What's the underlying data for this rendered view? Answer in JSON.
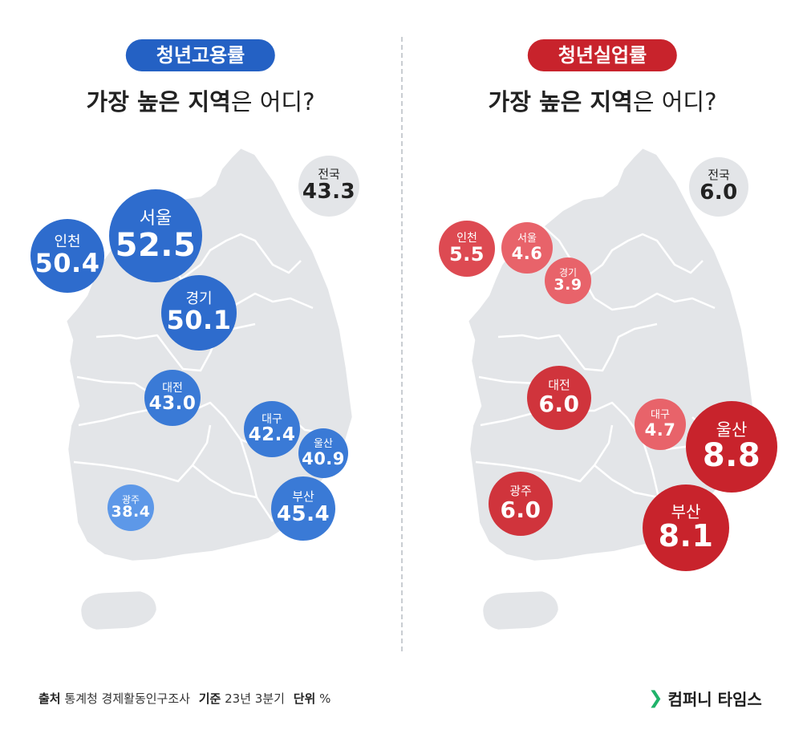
{
  "left": {
    "pill": "청년고용률",
    "pill_color": "#2461c4",
    "subtitle_strong": "가장 높은 지역",
    "subtitle_rest": "은 어디?",
    "national": {
      "name": "전국",
      "value": "43.3"
    },
    "regions": [
      {
        "name": "서울",
        "value": "52.5"
      },
      {
        "name": "인천",
        "value": "50.4"
      },
      {
        "name": "경기",
        "value": "50.1"
      },
      {
        "name": "대전",
        "value": "43.0"
      },
      {
        "name": "대구",
        "value": "42.4"
      },
      {
        "name": "울산",
        "value": "40.9"
      },
      {
        "name": "부산",
        "value": "45.4"
      },
      {
        "name": "광주",
        "value": "38.4"
      }
    ]
  },
  "right": {
    "pill": "청년실업률",
    "pill_color": "#c8232c",
    "subtitle_strong": "가장 높은 지역",
    "subtitle_rest": "은 어디?",
    "national": {
      "name": "전국",
      "value": "6.0"
    },
    "regions": [
      {
        "name": "인천",
        "value": "5.5"
      },
      {
        "name": "서울",
        "value": "4.6"
      },
      {
        "name": "경기",
        "value": "3.9"
      },
      {
        "name": "대전",
        "value": "6.0"
      },
      {
        "name": "대구",
        "value": "4.7"
      },
      {
        "name": "울산",
        "value": "8.8"
      },
      {
        "name": "부산",
        "value": "8.1"
      },
      {
        "name": "광주",
        "value": "6.0"
      }
    ]
  },
  "footer": {
    "source_label": "출처",
    "source_value": "통계청 경제활동인구조사",
    "basis_label": "기준",
    "basis_value": "23년 3분기",
    "unit_label": "단위",
    "unit_value": "%"
  },
  "brand": {
    "name": "컴퍼니 타임스",
    "icon": "chevron-right-icon"
  }
}
